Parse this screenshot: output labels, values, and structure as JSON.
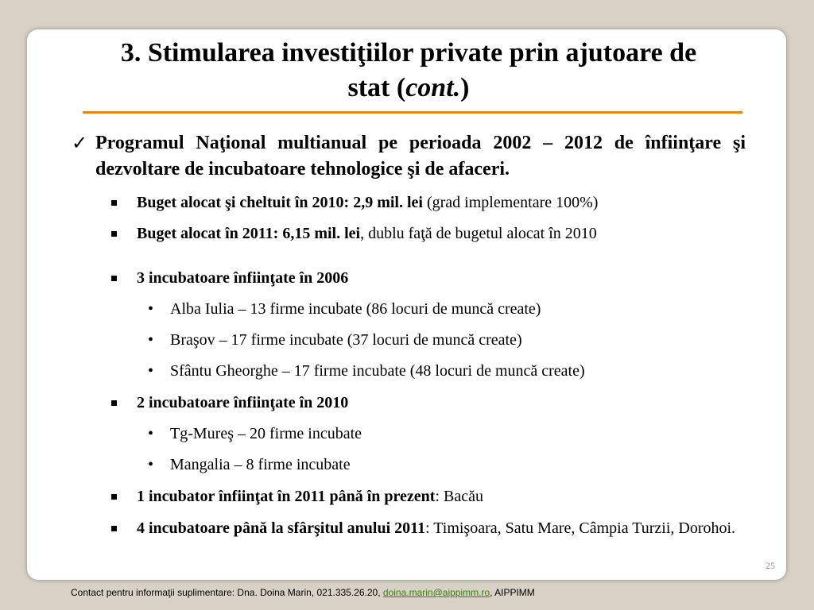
{
  "title": {
    "line1": "3. Stimularea investiţiilor private prin ajutoare de",
    "line2_pre": "stat (",
    "line2_italic": "cont.",
    "line2_post": ")"
  },
  "main_point": "Programul Naţional multianual pe perioada 2002 – 2012 de înfiinţare şi dezvoltare de incubatoare tehnologice şi de afaceri.",
  "bullets": {
    "b1_bold": "Buget alocat şi cheltuit în 2010: 2,9 mil. lei",
    "b1_rest": " (grad implementare 100%)",
    "b2_bold": "Buget alocat în 2011: 6,15 mil. lei",
    "b2_rest": ", dublu faţă de bugetul alocat în 2010",
    "b3_bold": "3 incubatoare înfiinţate în 2006",
    "b3_sub": [
      "Alba Iulia – 13 firme incubate (86 locuri de muncă create)",
      "Braşov – 17 firme incubate (37 locuri de muncă create)",
      "Sfântu Gheorghe – 17 firme incubate (48 locuri de muncă create)"
    ],
    "b4_bold": "2 incubatoare înfiinţate în 2010",
    "b4_sub": [
      "Tg-Mureş – 20 firme incubate",
      "Mangalia – 8 firme incubate"
    ],
    "b5_bold": "1 incubator înfiinţat în 2011 până în prezent",
    "b5_rest": ": Bacău",
    "b6_bold": "4 incubatoare până la sfârşitul anului 2011",
    "b6_rest": ": Timişoara, Satu Mare, Câmpia Turzii, Dorohoi."
  },
  "page_number": "25",
  "footer": {
    "prefix": "Contact pentru informaţii suplimentare: Dna. Doina Marin, 021.335.26.20, ",
    "email": "doina.marin@aippimm.ro",
    "suffix": ", AIPPIMM"
  },
  "colors": {
    "accent_rule": "#e8821e",
    "link": "#3c7a12",
    "background": "#d8d2c6"
  }
}
